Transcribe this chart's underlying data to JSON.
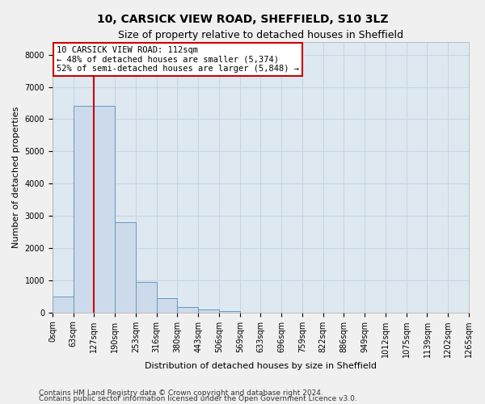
{
  "title": "10, CARSICK VIEW ROAD, SHEFFIELD, S10 3LZ",
  "subtitle": "Size of property relative to detached houses in Sheffield",
  "xlabel": "Distribution of detached houses by size in Sheffield",
  "ylabel": "Number of detached properties",
  "footer_line1": "Contains HM Land Registry data © Crown copyright and database right 2024.",
  "footer_line2": "Contains public sector information licensed under the Open Government Licence v3.0.",
  "bin_labels": [
    "0sqm",
    "63sqm",
    "127sqm",
    "190sqm",
    "253sqm",
    "316sqm",
    "380sqm",
    "443sqm",
    "506sqm",
    "569sqm",
    "633sqm",
    "696sqm",
    "759sqm",
    "822sqm",
    "886sqm",
    "949sqm",
    "1012sqm",
    "1075sqm",
    "1139sqm",
    "1202sqm",
    "1265sqm"
  ],
  "bar_values": [
    500,
    6400,
    6400,
    2800,
    950,
    450,
    175,
    100,
    50,
    0,
    0,
    0,
    0,
    0,
    0,
    0,
    0,
    0,
    0,
    0
  ],
  "bar_color": "#ccdaeb",
  "bar_edge_color": "#6699bb",
  "red_line_x": 2.0,
  "annotation_text": "10 CARSICK VIEW ROAD: 112sqm\n← 48% of detached houses are smaller (5,374)\n52% of semi-detached houses are larger (5,848) →",
  "annotation_box_facecolor": "#ffffff",
  "annotation_box_edgecolor": "#cc0000",
  "ylim": [
    0,
    8400
  ],
  "yticks": [
    0,
    1000,
    2000,
    3000,
    4000,
    5000,
    6000,
    7000,
    8000
  ],
  "grid_color": "#c5d5e5",
  "bg_color": "#dde8f0",
  "fig_facecolor": "#f0f0f0",
  "title_fontsize": 10,
  "subtitle_fontsize": 9,
  "label_fontsize": 8,
  "tick_fontsize": 7,
  "annot_fontsize": 7.5,
  "footer_fontsize": 6.5
}
